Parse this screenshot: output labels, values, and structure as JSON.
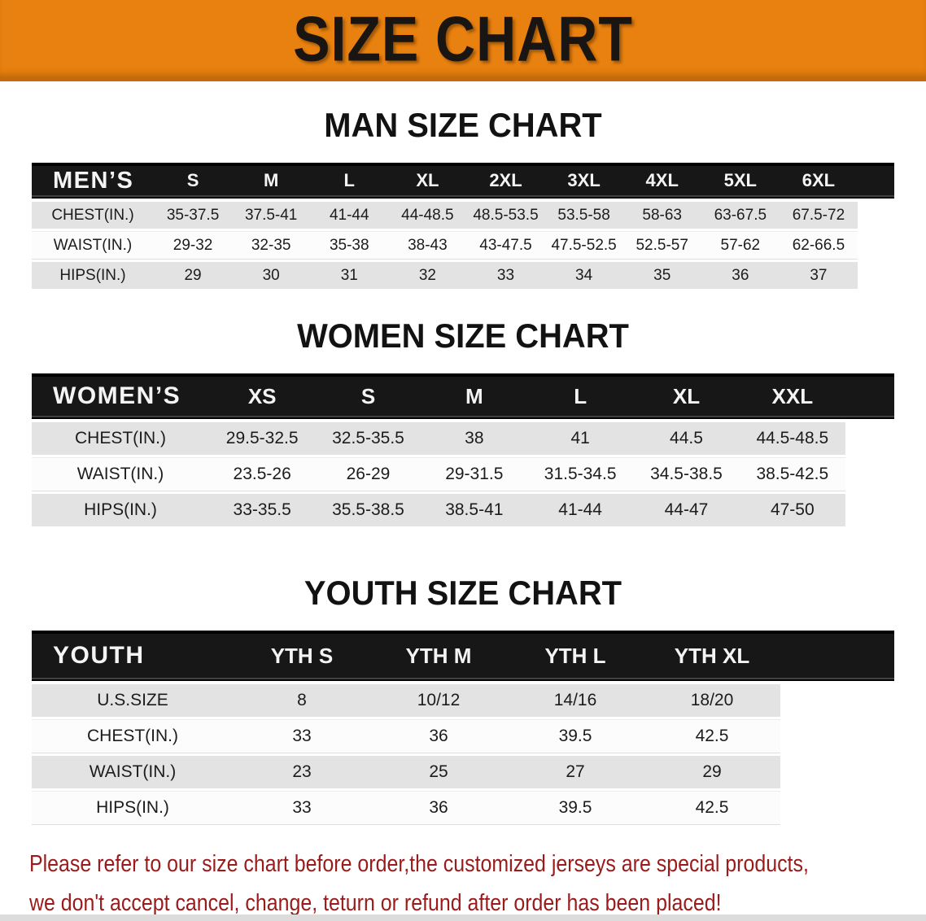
{
  "banner": {
    "title": "SIZE CHART"
  },
  "chart_data": [
    {
      "type": "table",
      "title": "MAN SIZE CHART",
      "corner_label": "MEN’S",
      "columns": [
        "S",
        "M",
        "L",
        "XL",
        "2XL",
        "3XL",
        "4XL",
        "5XL",
        "6XL"
      ],
      "rows": [
        {
          "label": "CHEST(IN.)",
          "values": [
            "35-37.5",
            "37.5-41",
            "41-44",
            "44-48.5",
            "48.5-53.5",
            "53.5-58",
            "58-63",
            "63-67.5",
            "67.5-72"
          ]
        },
        {
          "label": "WAIST(IN.)",
          "values": [
            "29-32",
            "32-35",
            "35-38",
            "38-43",
            "43-47.5",
            "47.5-52.5",
            "52.5-57",
            "57-62",
            "62-66.5"
          ]
        },
        {
          "label": "HIPS(IN.)",
          "values": [
            "29",
            "30",
            "31",
            "32",
            "33",
            "34",
            "35",
            "36",
            "37"
          ]
        }
      ]
    },
    {
      "type": "table",
      "title": "WOMEN SIZE CHART",
      "corner_label": "WOMEN’S",
      "columns": [
        "XS",
        "S",
        "M",
        "L",
        "XL",
        "XXL"
      ],
      "rows": [
        {
          "label": "CHEST(IN.)",
          "values": [
            "29.5-32.5",
            "32.5-35.5",
            "38",
            "41",
            "44.5",
            "44.5-48.5"
          ]
        },
        {
          "label": "WAIST(IN.)",
          "values": [
            "23.5-26",
            "26-29",
            "29-31.5",
            "31.5-34.5",
            "34.5-38.5",
            "38.5-42.5"
          ]
        },
        {
          "label": "HIPS(IN.)",
          "values": [
            "33-35.5",
            "35.5-38.5",
            "38.5-41",
            "41-44",
            "44-47",
            "47-50"
          ]
        }
      ]
    },
    {
      "type": "table",
      "title": "YOUTH SIZE CHART",
      "corner_label": "YOUTH",
      "columns": [
        "YTH S",
        "YTH M",
        "YTH L",
        "YTH XL"
      ],
      "rows": [
        {
          "label": "U.S.SIZE",
          "values": [
            "8",
            "10/12",
            "14/16",
            "18/20"
          ]
        },
        {
          "label": "CHEST(IN.)",
          "values": [
            "33",
            "36",
            "39.5",
            "42.5"
          ]
        },
        {
          "label": "WAIST(IN.)",
          "values": [
            "23",
            "25",
            "27",
            "29"
          ]
        },
        {
          "label": "HIPS(IN.)",
          "values": [
            "33",
            "36",
            "39.5",
            "42.5"
          ]
        }
      ]
    }
  ],
  "disclaimer": {
    "lines": [
      "Please refer to our size chart before order,the customized jerseys are special products,",
      "we don't accept cancel, change, teturn or refund after order has been placed!"
    ]
  },
  "colors": {
    "banner_orange": "#E8810F",
    "banner_edge": "#C26A0D",
    "header_black": "#171717",
    "row_gray": "#E3E3E3",
    "row_white": "#FCFCFC",
    "text_dark": "#1C1C1C",
    "disclaimer_red": "#9A1B1B",
    "strip_gray": "#DCDCDC"
  }
}
